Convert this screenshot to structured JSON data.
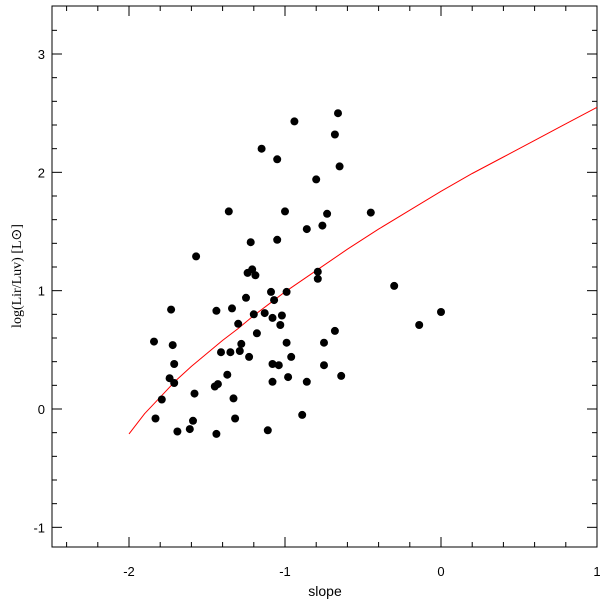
{
  "chart_data": {
    "type": "scatter",
    "xlabel": "slope",
    "ylabel": "log(Lir/Luv) [L⊙]",
    "xlim": [
      -2.5,
      1.0
    ],
    "ylim": [
      -1.2,
      3.35
    ],
    "xticks_major": [
      -2,
      -1,
      0,
      1
    ],
    "xtick_labels": [
      "-2",
      "-1",
      "0",
      "1"
    ],
    "yticks_major": [
      -1,
      0,
      1,
      2,
      3
    ],
    "ytick_labels": [
      "-1",
      "0",
      "1",
      "2",
      "3"
    ],
    "grid": false,
    "colors": {
      "points": "#000000",
      "curve": "#ff0000",
      "axes": "#000000"
    },
    "series": [
      {
        "kind": "scatter",
        "points": [
          [
            -1.84,
            0.57
          ],
          [
            -1.83,
            -0.08
          ],
          [
            -1.79,
            0.08
          ],
          [
            -1.74,
            0.26
          ],
          [
            -1.73,
            0.84
          ],
          [
            -1.72,
            0.54
          ],
          [
            -1.71,
            0.38
          ],
          [
            -1.71,
            0.22
          ],
          [
            -1.69,
            -0.19
          ],
          [
            -1.61,
            -0.17
          ],
          [
            -1.59,
            -0.1
          ],
          [
            -1.58,
            0.13
          ],
          [
            -1.57,
            1.29
          ],
          [
            -1.45,
            0.19
          ],
          [
            -1.44,
            -0.21
          ],
          [
            -1.44,
            0.83
          ],
          [
            -1.43,
            0.21
          ],
          [
            -1.41,
            0.48
          ],
          [
            -1.37,
            0.29
          ],
          [
            -1.36,
            1.67
          ],
          [
            -1.35,
            0.48
          ],
          [
            -1.34,
            0.85
          ],
          [
            -1.33,
            0.09
          ],
          [
            -1.32,
            -0.08
          ],
          [
            -1.3,
            0.72
          ],
          [
            -1.29,
            0.49
          ],
          [
            -1.28,
            0.55
          ],
          [
            -1.25,
            0.94
          ],
          [
            -1.24,
            1.15
          ],
          [
            -1.23,
            0.44
          ],
          [
            -1.22,
            1.41
          ],
          [
            -1.21,
            1.18
          ],
          [
            -1.2,
            0.8
          ],
          [
            -1.19,
            1.13
          ],
          [
            -1.18,
            0.64
          ],
          [
            -1.15,
            2.2
          ],
          [
            -1.13,
            0.81
          ],
          [
            -1.11,
            -0.18
          ],
          [
            -1.09,
            0.99
          ],
          [
            -1.08,
            0.23
          ],
          [
            -1.08,
            0.77
          ],
          [
            -1.08,
            0.38
          ],
          [
            -1.07,
            0.92
          ],
          [
            -1.05,
            2.11
          ],
          [
            -1.05,
            1.43
          ],
          [
            -1.04,
            0.37
          ],
          [
            -1.03,
            0.71
          ],
          [
            -1.02,
            0.79
          ],
          [
            -1.0,
            1.67
          ],
          [
            -0.99,
            0.99
          ],
          [
            -0.99,
            0.56
          ],
          [
            -0.98,
            0.27
          ],
          [
            -0.96,
            0.44
          ],
          [
            -0.94,
            2.43
          ],
          [
            -0.89,
            -0.05
          ],
          [
            -0.86,
            1.52
          ],
          [
            -0.86,
            0.23
          ],
          [
            -0.8,
            1.94
          ],
          [
            -0.79,
            1.16
          ],
          [
            -0.79,
            1.1
          ],
          [
            -0.76,
            1.55
          ],
          [
            -0.75,
            0.37
          ],
          [
            -0.75,
            0.56
          ],
          [
            -0.73,
            1.65
          ],
          [
            -0.68,
            2.32
          ],
          [
            -0.68,
            0.66
          ],
          [
            -0.66,
            2.5
          ],
          [
            -0.65,
            2.05
          ],
          [
            -0.64,
            0.28
          ],
          [
            -0.45,
            1.66
          ],
          [
            -0.3,
            1.04
          ],
          [
            -0.14,
            0.71
          ],
          [
            0.0,
            0.82
          ]
        ]
      },
      {
        "kind": "line",
        "points": [
          [
            -2.0,
            -0.21
          ],
          [
            -1.9,
            -0.04
          ],
          [
            -1.8,
            0.1
          ],
          [
            -1.7,
            0.24
          ],
          [
            -1.6,
            0.36
          ],
          [
            -1.5,
            0.47
          ],
          [
            -1.4,
            0.58
          ],
          [
            -1.3,
            0.68
          ],
          [
            -1.2,
            0.79
          ],
          [
            -1.1,
            0.89
          ],
          [
            -1.0,
            0.99
          ],
          [
            -0.8,
            1.17
          ],
          [
            -0.6,
            1.35
          ],
          [
            -0.4,
            1.52
          ],
          [
            -0.2,
            1.68
          ],
          [
            0.0,
            1.84
          ],
          [
            0.2,
            1.99
          ],
          [
            0.4,
            2.13
          ],
          [
            0.6,
            2.27
          ],
          [
            0.8,
            2.41
          ],
          [
            1.0,
            2.55
          ]
        ]
      }
    ]
  }
}
